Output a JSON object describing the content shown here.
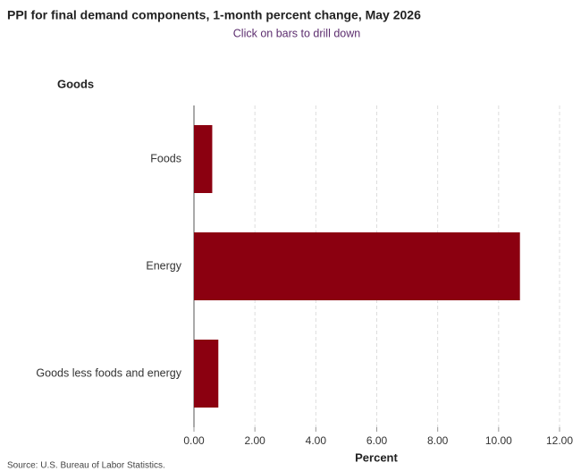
{
  "chart_data": {
    "type": "hbar",
    "title": "PPI for final demand components, 1-month percent change, May 2026",
    "subtitle": "Click on bars to drill down",
    "y_label": "Goods",
    "x_label": "Percent",
    "source": "Source: U.S. Bureau of Labor Statistics.",
    "categories": [
      "Foods",
      "Energy",
      "Goods less foods and energy"
    ],
    "values": [
      0.6,
      10.7,
      0.8
    ],
    "color": "#8b0010",
    "xlim": [
      0,
      12
    ],
    "xticks": [
      {
        "value": 0,
        "label": "0.00"
      },
      {
        "value": 2,
        "label": "2.00"
      },
      {
        "value": 4,
        "label": "4.00"
      },
      {
        "value": 6,
        "label": "6.00"
      },
      {
        "value": 8,
        "label": "8.00"
      },
      {
        "value": 10,
        "label": "10.00"
      },
      {
        "value": 12,
        "label": "12.00"
      }
    ],
    "grid": true
  }
}
